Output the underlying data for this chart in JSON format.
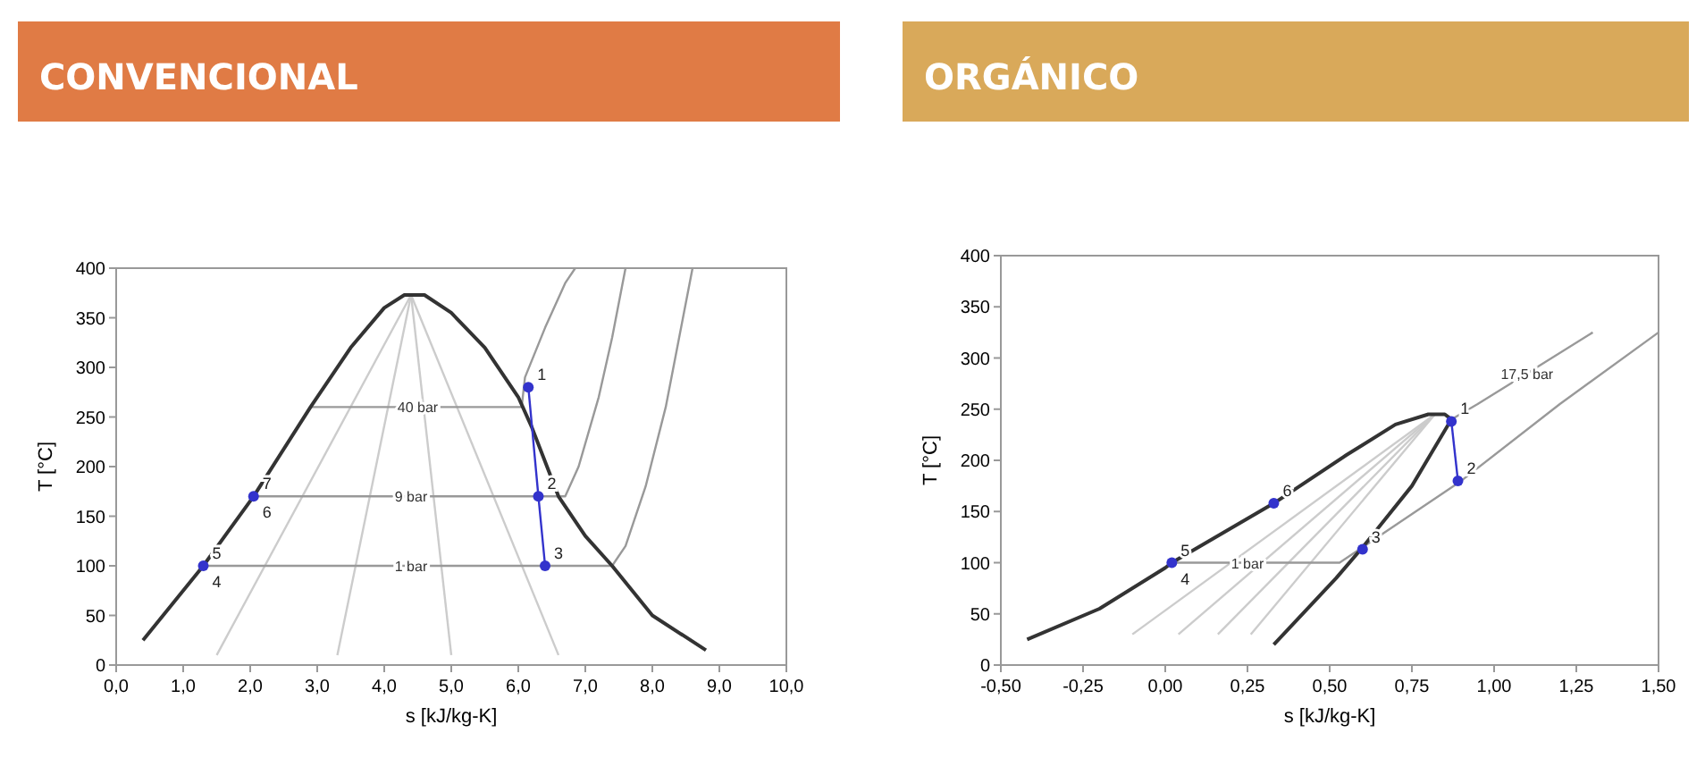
{
  "chart_data": [
    {
      "type": "line",
      "title": "CONVENCIONAL",
      "xlabel": "s [kJ/kg-K]",
      "ylabel": "T [°C]",
      "xlim": [
        0,
        10
      ],
      "ylim": [
        0,
        400
      ],
      "xticks": [
        {
          "value": 0,
          "label": "0,0"
        },
        {
          "value": 1,
          "label": "1,0"
        },
        {
          "value": 2,
          "label": "2,0"
        },
        {
          "value": 3,
          "label": "3,0"
        },
        {
          "value": 4,
          "label": "4,0"
        },
        {
          "value": 5,
          "label": "5,0"
        },
        {
          "value": 6,
          "label": "6,0"
        },
        {
          "value": 7,
          "label": "7,0"
        },
        {
          "value": 8,
          "label": "8,0"
        },
        {
          "value": 9,
          "label": "9,0"
        },
        {
          "value": 10,
          "label": "10,0"
        }
      ],
      "yticks": [
        0,
        50,
        100,
        150,
        200,
        250,
        300,
        350,
        400
      ],
      "series": [
        {
          "color": "#cccccc",
          "x": [
            1.5,
            4.4
          ],
          "values": [
            10,
            373
          ]
        },
        {
          "color": "#cccccc",
          "x": [
            3.3,
            4.4
          ],
          "values": [
            10,
            373
          ]
        },
        {
          "color": "#cccccc",
          "x": [
            5.0,
            4.4
          ],
          "values": [
            10,
            373
          ]
        },
        {
          "color": "#cccccc",
          "x": [
            6.6,
            4.4
          ],
          "values": [
            10,
            373
          ]
        },
        {
          "color": "#999999",
          "x": [
            2.9,
            6.05,
            6.1,
            6.4,
            6.7,
            6.85
          ],
          "values": [
            260,
            260,
            290,
            340,
            385,
            400
          ]
        },
        {
          "color": "#999999",
          "x": [
            2.05,
            6.7,
            6.9,
            7.2,
            7.4,
            7.6
          ],
          "values": [
            170,
            170,
            200,
            270,
            330,
            400
          ]
        },
        {
          "color": "#999999",
          "x": [
            1.3,
            7.4,
            7.6,
            7.9,
            8.2,
            8.4,
            8.6
          ],
          "values": [
            100,
            100,
            120,
            180,
            260,
            330,
            400
          ]
        },
        {
          "color": "#333333",
          "x": [
            0.4,
            1.0,
            1.3,
            2.05,
            2.9,
            3.5,
            4.0,
            4.3,
            4.6,
            5.0,
            5.5,
            6.0,
            6.2,
            6.6,
            7.0,
            7.4,
            8.0,
            8.8
          ],
          "values": [
            25,
            75,
            100,
            170,
            260,
            320,
            360,
            373,
            373,
            355,
            320,
            270,
            240,
            170,
            130,
            100,
            50,
            15
          ]
        },
        {
          "color": "#3333cc",
          "marker": "circle",
          "x": [
            6.15,
            6.3,
            6.4
          ],
          "values": [
            280,
            170,
            100
          ]
        },
        {
          "type": "scatter",
          "color": "#3333cc",
          "marker": "circle",
          "x": [
            1.3,
            2.05
          ],
          "values": [
            100,
            170
          ]
        }
      ],
      "annotations": [
        {
          "text": "40 bar",
          "x": 4.5,
          "y": 260
        },
        {
          "text": "9 bar",
          "x": 4.4,
          "y": 170
        },
        {
          "text": "1 bar",
          "x": 4.4,
          "y": 100
        },
        {
          "text": "1",
          "x": 6.15,
          "y": 280
        },
        {
          "text": "2",
          "x": 6.3,
          "y": 170
        },
        {
          "text": "3",
          "x": 6.4,
          "y": 100
        },
        {
          "text": "5",
          "x": 1.3,
          "y": 100
        },
        {
          "text": "4",
          "x": 1.3,
          "y": 100
        },
        {
          "text": "7",
          "x": 2.05,
          "y": 170
        },
        {
          "text": "6",
          "x": 2.05,
          "y": 170
        }
      ]
    },
    {
      "type": "line",
      "title": "ORGÁNICO",
      "xlabel": "s [kJ/kg-K]",
      "ylabel": "T [°C]",
      "xlim": [
        -0.5,
        1.5
      ],
      "ylim": [
        0,
        400
      ],
      "xticks": [
        {
          "value": -0.5,
          "label": "-0,50"
        },
        {
          "value": -0.25,
          "label": "-0,25"
        },
        {
          "value": 0,
          "label": "0,00"
        },
        {
          "value": 0.25,
          "label": "0,25"
        },
        {
          "value": 0.5,
          "label": "0,50"
        },
        {
          "value": 0.75,
          "label": "0,75"
        },
        {
          "value": 1,
          "label": "1,00"
        },
        {
          "value": 1.25,
          "label": "1,25"
        },
        {
          "value": 1.5,
          "label": "1,50"
        }
      ],
      "yticks": [
        0,
        50,
        100,
        150,
        200,
        250,
        300,
        350,
        400
      ],
      "series": [
        {
          "color": "#cccccc",
          "x": [
            -0.1,
            0.82
          ],
          "values": [
            30,
            245
          ]
        },
        {
          "color": "#cccccc",
          "x": [
            0.04,
            0.82
          ],
          "values": [
            30,
            245
          ]
        },
        {
          "color": "#cccccc",
          "x": [
            0.16,
            0.82
          ],
          "values": [
            30,
            245
          ]
        },
        {
          "color": "#cccccc",
          "x": [
            0.26,
            0.82
          ],
          "values": [
            30,
            245
          ]
        },
        {
          "color": "#999999",
          "x": [
            0.87,
            0.95,
            1.1,
            1.3
          ],
          "values": [
            240,
            255,
            285,
            325
          ]
        },
        {
          "color": "#999999",
          "x": [
            0.02,
            0.53,
            0.6,
            0.9,
            1.2,
            1.5
          ],
          "values": [
            100,
            100,
            115,
            180,
            255,
            325
          ]
        },
        {
          "color": "#333333",
          "x": [
            -0.42,
            -0.2,
            0.0,
            0.02,
            0.33,
            0.55,
            0.7,
            0.8,
            0.85,
            0.87,
            0.75,
            0.6,
            0.52,
            0.33
          ],
          "values": [
            25,
            55,
            95,
            100,
            158,
            205,
            235,
            245,
            245,
            240,
            175,
            115,
            85,
            20
          ]
        },
        {
          "color": "#3333cc",
          "marker": "circle",
          "x": [
            0.87,
            0.89
          ],
          "values": [
            238,
            180
          ]
        },
        {
          "type": "scatter",
          "color": "#3333cc",
          "marker": "circle",
          "x": [
            0.02,
            0.33,
            0.6
          ],
          "values": [
            100,
            158,
            113
          ]
        }
      ],
      "annotations": [
        {
          "text": "17,5 bar",
          "x": 1.1,
          "y": 285
        },
        {
          "text": "1 bar",
          "x": 0.25,
          "y": 100
        },
        {
          "text": "1",
          "x": 0.87,
          "y": 238
        },
        {
          "text": "2",
          "x": 0.89,
          "y": 180
        },
        {
          "text": "3",
          "x": 0.6,
          "y": 113
        },
        {
          "text": "5",
          "x": 0.02,
          "y": 100
        },
        {
          "text": "4",
          "x": 0.02,
          "y": 100
        },
        {
          "text": "6",
          "x": 0.33,
          "y": 158
        }
      ]
    }
  ]
}
